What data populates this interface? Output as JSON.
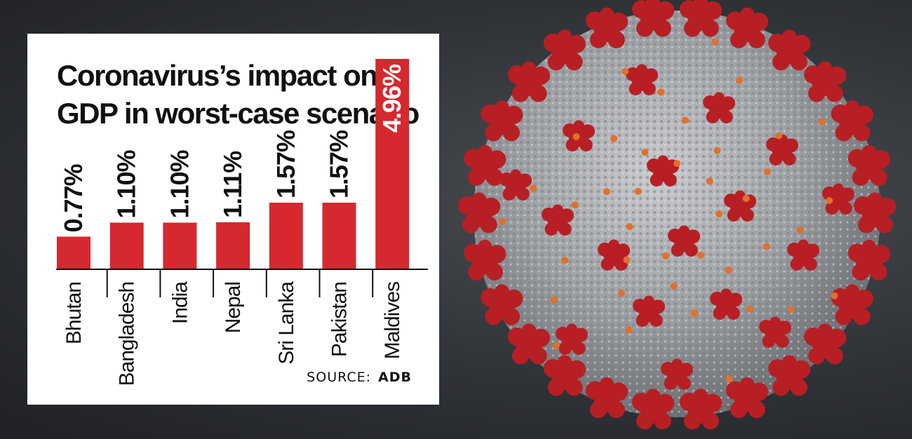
{
  "colors": {
    "bar": "#d6282f",
    "axis": "#111111",
    "panel": "#ffffff",
    "spike": "#b71f24",
    "virus_body": "#a9acb0"
  },
  "source": {
    "prefix": "SOURCE:",
    "name": "ADB"
  },
  "chart_data": {
    "type": "bar",
    "title_lines": [
      "Coronavirus’s impact on",
      "GDP in worst-case scenario"
    ],
    "categories": [
      "Bhutan",
      "Bangladesh",
      "India",
      "Nepal",
      "Sri Lanka",
      "Pakistan",
      "Maldives"
    ],
    "values": [
      0.77,
      1.1,
      1.1,
      1.11,
      1.57,
      1.57,
      4.96
    ],
    "value_labels": [
      "0.77%",
      "1.10%",
      "1.10%",
      "1.11%",
      "1.57%",
      "1.57%",
      "4.96%"
    ],
    "unit": "%",
    "ylim": [
      0,
      4.96
    ],
    "grid": false,
    "legend": "none"
  }
}
